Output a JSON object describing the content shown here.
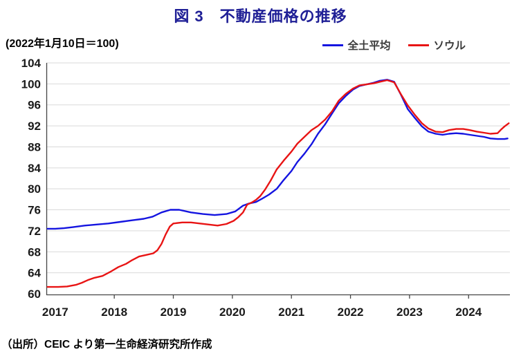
{
  "chart_data": {
    "type": "line",
    "title": "図 3　不動産価格の推移",
    "title_color": "#1f1f96",
    "note": "(2022年1月10日＝100)",
    "source": "（出所）CEIC より第一生命経済研究所作成",
    "legend_position": "top-right",
    "x_axis": {
      "range": [
        2016.85,
        2024.7
      ],
      "tick_labels": [
        "2017",
        "2018",
        "2019",
        "2020",
        "2021",
        "2022",
        "2023",
        "2024"
      ],
      "tick_values": [
        2017,
        2018,
        2019,
        2020,
        2021,
        2022,
        2023,
        2024
      ]
    },
    "y_axis": {
      "range": [
        60,
        104
      ],
      "tick_step": 4,
      "tick_values": [
        60,
        64,
        68,
        72,
        76,
        80,
        84,
        88,
        92,
        96,
        100,
        104
      ],
      "grid": true
    },
    "grid_color": "#d9d9d9",
    "axis_color": "#444444",
    "label_color": "#1a1a1a",
    "series": [
      {
        "name": "全土平均",
        "color": "#1414e0",
        "points": [
          [
            2016.87,
            72.4
          ],
          [
            2017.0,
            72.4
          ],
          [
            2017.15,
            72.5
          ],
          [
            2017.3,
            72.7
          ],
          [
            2017.5,
            73.0
          ],
          [
            2017.7,
            73.2
          ],
          [
            2017.9,
            73.4
          ],
          [
            2018.1,
            73.7
          ],
          [
            2018.3,
            74.0
          ],
          [
            2018.5,
            74.3
          ],
          [
            2018.65,
            74.7
          ],
          [
            2018.8,
            75.5
          ],
          [
            2018.95,
            76.0
          ],
          [
            2019.1,
            76.0
          ],
          [
            2019.3,
            75.5
          ],
          [
            2019.5,
            75.2
          ],
          [
            2019.7,
            75.0
          ],
          [
            2019.9,
            75.2
          ],
          [
            2020.05,
            75.7
          ],
          [
            2020.18,
            76.8
          ],
          [
            2020.28,
            77.2
          ],
          [
            2020.4,
            77.5
          ],
          [
            2020.5,
            78.1
          ],
          [
            2020.62,
            78.9
          ],
          [
            2020.75,
            80.0
          ],
          [
            2020.87,
            81.7
          ],
          [
            2021.0,
            83.4
          ],
          [
            2021.1,
            85.1
          ],
          [
            2021.22,
            86.7
          ],
          [
            2021.34,
            88.5
          ],
          [
            2021.45,
            90.5
          ],
          [
            2021.57,
            92.3
          ],
          [
            2021.69,
            94.4
          ],
          [
            2021.8,
            96.3
          ],
          [
            2021.92,
            97.7
          ],
          [
            2022.04,
            98.9
          ],
          [
            2022.15,
            99.6
          ],
          [
            2022.27,
            99.9
          ],
          [
            2022.39,
            100.2
          ],
          [
            2022.5,
            100.6
          ],
          [
            2022.62,
            100.8
          ],
          [
            2022.74,
            100.4
          ],
          [
            2022.86,
            97.8
          ],
          [
            2022.97,
            95.2
          ],
          [
            2023.09,
            93.5
          ],
          [
            2023.21,
            91.9
          ],
          [
            2023.32,
            90.9
          ],
          [
            2023.44,
            90.5
          ],
          [
            2023.56,
            90.3
          ],
          [
            2023.67,
            90.5
          ],
          [
            2023.79,
            90.6
          ],
          [
            2023.91,
            90.5
          ],
          [
            2024.02,
            90.3
          ],
          [
            2024.14,
            90.1
          ],
          [
            2024.26,
            89.9
          ],
          [
            2024.37,
            89.6
          ],
          [
            2024.49,
            89.5
          ],
          [
            2024.61,
            89.5
          ],
          [
            2024.66,
            89.6
          ]
        ]
      },
      {
        "name": "ソウル",
        "color": "#e81414",
        "points": [
          [
            2016.87,
            61.3
          ],
          [
            2017.05,
            61.3
          ],
          [
            2017.2,
            61.4
          ],
          [
            2017.35,
            61.7
          ],
          [
            2017.45,
            62.1
          ],
          [
            2017.55,
            62.6
          ],
          [
            2017.65,
            63.0
          ],
          [
            2017.8,
            63.4
          ],
          [
            2017.95,
            64.3
          ],
          [
            2018.07,
            65.1
          ],
          [
            2018.2,
            65.7
          ],
          [
            2018.3,
            66.4
          ],
          [
            2018.42,
            67.1
          ],
          [
            2018.54,
            67.4
          ],
          [
            2018.66,
            67.7
          ],
          [
            2018.73,
            68.3
          ],
          [
            2018.8,
            69.5
          ],
          [
            2018.87,
            71.3
          ],
          [
            2018.94,
            72.8
          ],
          [
            2019.0,
            73.4
          ],
          [
            2019.15,
            73.6
          ],
          [
            2019.3,
            73.6
          ],
          [
            2019.45,
            73.4
          ],
          [
            2019.6,
            73.2
          ],
          [
            2019.75,
            73.0
          ],
          [
            2019.9,
            73.3
          ],
          [
            2020.02,
            73.9
          ],
          [
            2020.1,
            74.6
          ],
          [
            2020.18,
            75.5
          ],
          [
            2020.25,
            77.0
          ],
          [
            2020.33,
            77.4
          ],
          [
            2020.4,
            77.9
          ],
          [
            2020.47,
            78.6
          ],
          [
            2020.55,
            79.8
          ],
          [
            2020.65,
            81.6
          ],
          [
            2020.75,
            83.7
          ],
          [
            2020.87,
            85.4
          ],
          [
            2021.0,
            87.1
          ],
          [
            2021.1,
            88.6
          ],
          [
            2021.22,
            89.9
          ],
          [
            2021.34,
            91.2
          ],
          [
            2021.45,
            92.0
          ],
          [
            2021.57,
            93.2
          ],
          [
            2021.69,
            94.8
          ],
          [
            2021.8,
            96.8
          ],
          [
            2021.92,
            98.1
          ],
          [
            2022.04,
            99.1
          ],
          [
            2022.15,
            99.7
          ],
          [
            2022.27,
            99.9
          ],
          [
            2022.39,
            100.1
          ],
          [
            2022.5,
            100.4
          ],
          [
            2022.62,
            100.7
          ],
          [
            2022.74,
            100.3
          ],
          [
            2022.86,
            97.9
          ],
          [
            2022.97,
            95.9
          ],
          [
            2023.09,
            94.1
          ],
          [
            2023.21,
            92.5
          ],
          [
            2023.32,
            91.5
          ],
          [
            2023.44,
            90.9
          ],
          [
            2023.56,
            90.8
          ],
          [
            2023.67,
            91.2
          ],
          [
            2023.79,
            91.4
          ],
          [
            2023.91,
            91.4
          ],
          [
            2024.02,
            91.2
          ],
          [
            2024.14,
            90.9
          ],
          [
            2024.26,
            90.7
          ],
          [
            2024.37,
            90.5
          ],
          [
            2024.49,
            90.6
          ],
          [
            2024.55,
            91.3
          ],
          [
            2024.61,
            91.9
          ],
          [
            2024.68,
            92.5
          ]
        ]
      }
    ]
  }
}
